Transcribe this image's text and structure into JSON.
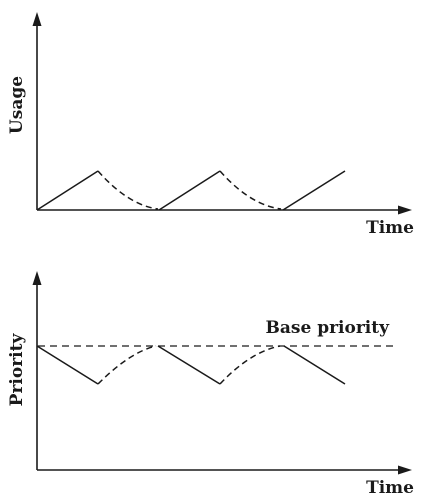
{
  "panels": {
    "usage": {
      "y_label": "Usage",
      "x_label": "Time"
    },
    "priority": {
      "y_label": "Priority",
      "x_label": "Time",
      "base_label": "Base priority"
    }
  },
  "colors": {
    "ink": "#1a1a1a",
    "background": "#ffffff"
  },
  "line_styles": {
    "rising_usage": "solid",
    "decaying_usage": "dashed",
    "base_priority": "dashed"
  }
}
